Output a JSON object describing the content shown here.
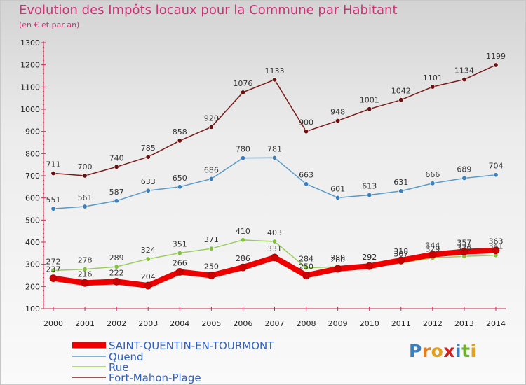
{
  "title": "Evolution des Impôts locaux pour la Commune par Habitant",
  "subtitle": "(en € et par an)",
  "logo": "Proxiti",
  "chart_data": {
    "type": "line",
    "title": "Evolution des Impôts locaux pour la Commune par Habitant",
    "subtitle": "(en € et par an)",
    "x": [
      "2000",
      "2001",
      "2002",
      "2003",
      "2004",
      "2005",
      "2006",
      "2007",
      "2008",
      "2009",
      "2010",
      "2011",
      "2012",
      "2013",
      "2014"
    ],
    "ylim": [
      100,
      1300
    ],
    "yticks": [
      100,
      200,
      300,
      400,
      500,
      600,
      700,
      800,
      900,
      1000,
      1100,
      1200,
      1300
    ],
    "grid": false,
    "legend_position": "bottom-left",
    "series": [
      {
        "name": "Fort-Mahon-Plage",
        "color": "#7a1a1a",
        "marker_color": "#6b0f0f",
        "values": [
          711,
          700,
          740,
          785,
          858,
          920,
          1076,
          1133,
          900,
          948,
          1001,
          1042,
          1101,
          1134,
          1199
        ]
      },
      {
        "name": "Quend",
        "color": "#5a9ac8",
        "marker_color": "#3a7fc0",
        "values": [
          551,
          561,
          587,
          633,
          650,
          686,
          780,
          781,
          663,
          601,
          613,
          631,
          666,
          689,
          704
        ]
      },
      {
        "name": "Rue",
        "color": "#9acd5a",
        "marker_color": "#7fc23a",
        "values": [
          272,
          278,
          289,
          324,
          351,
          371,
          410,
          403,
          284,
          289,
          292,
          307,
          329,
          336,
          341
        ]
      },
      {
        "name": "SAINT-QUENTIN-EN-TOURMONT",
        "color": "#ee0000",
        "marker_color": "#cc0000",
        "values": [
          237,
          216,
          222,
          204,
          266,
          250,
          286,
          331,
          250,
          280,
          292,
          318,
          344,
          357,
          363
        ]
      }
    ],
    "legend": [
      "SAINT-QUENTIN-EN-TOURMONT",
      "Quend",
      "Rue",
      "Fort-Mahon-Plage"
    ],
    "label_color": "#222222",
    "legend_text_color": "#3060c0"
  }
}
